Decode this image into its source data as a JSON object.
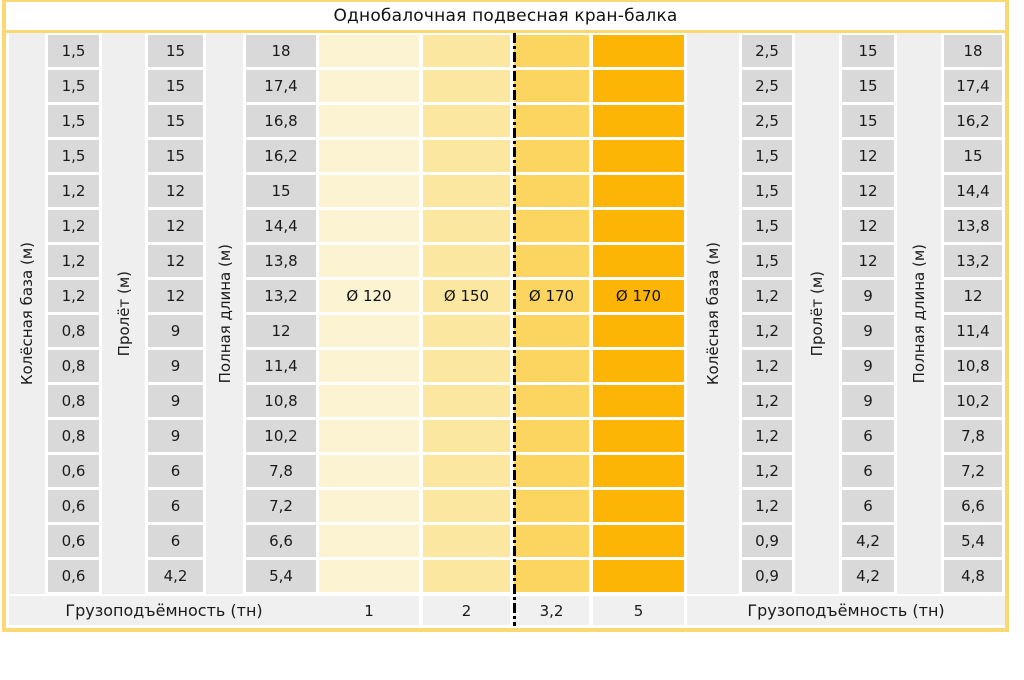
{
  "title": "Однобалочная подвесная кран-балка",
  "chart_data": {
    "type": "table",
    "title": "Однобалочная подвесная кран-балка",
    "left_table": {
      "columns": [
        {
          "label": "Колёсная база (м)",
          "values": [
            "1,5",
            "1,5",
            "1,5",
            "1,5",
            "1,2",
            "1,2",
            "1,2",
            "1,2",
            "0,8",
            "0,8",
            "0,8",
            "0,8",
            "0,6",
            "0,6",
            "0,6",
            "0,6"
          ]
        },
        {
          "label": "Пролёт (м)",
          "values": [
            "15",
            "15",
            "15",
            "15",
            "12",
            "12",
            "12",
            "12",
            "9",
            "9",
            "9",
            "9",
            "6",
            "6",
            "6",
            "4,2"
          ]
        },
        {
          "label": "Полная длина (м)",
          "values": [
            "18",
            "17,4",
            "16,8",
            "16,2",
            "15",
            "14,4",
            "13,8",
            "13,2",
            "12",
            "11,4",
            "10,8",
            "10,2",
            "7,8",
            "7,2",
            "6,6",
            "5,4"
          ]
        }
      ],
      "footer_label": "Грузоподъёмность (тн)"
    },
    "capacity_columns": {
      "footer_values": [
        "1",
        "2",
        "3,2",
        "5"
      ],
      "diameter_labels": [
        "Ø 120",
        "Ø 150",
        "Ø 170",
        "Ø 170"
      ],
      "colors": [
        "#FCF3D2",
        "#FCE7A0",
        "#FBD560",
        "#FCB405"
      ],
      "diameter_row_index": 8,
      "divider_after_column": 2,
      "row_count": 16
    },
    "right_table": {
      "columns": [
        {
          "label": "Колёсная база (м)",
          "values": [
            "2,5",
            "2,5",
            "2,5",
            "1,5",
            "1,5",
            "1,5",
            "1,5",
            "1,2",
            "1,2",
            "1,2",
            "1,2",
            "1,2",
            "1,2",
            "1,2",
            "0,9",
            "0,9"
          ]
        },
        {
          "label": "Пролёт (м)",
          "values": [
            "15",
            "15",
            "15",
            "12",
            "12",
            "12",
            "12",
            "9",
            "9",
            "9",
            "9",
            "6",
            "6",
            "6",
            "4,2",
            "4,2"
          ]
        },
        {
          "label": "Полная длина (м)",
          "values": [
            "18",
            "17,4",
            "16,2",
            "15",
            "14,4",
            "13,8",
            "13,2",
            "12",
            "11,4",
            "10,8",
            "10,2",
            "7,8",
            "7,2",
            "6,6",
            "5,4",
            "4,8"
          ]
        }
      ],
      "footer_label": "Грузоподъёмность (тн)"
    }
  },
  "colors": {
    "frame_border": "#FAD873",
    "data_cell": "#D9D9D9",
    "section_background": "#EFEFEF",
    "footer_cell": "#F0F0F0",
    "divider_line": "#000000"
  }
}
